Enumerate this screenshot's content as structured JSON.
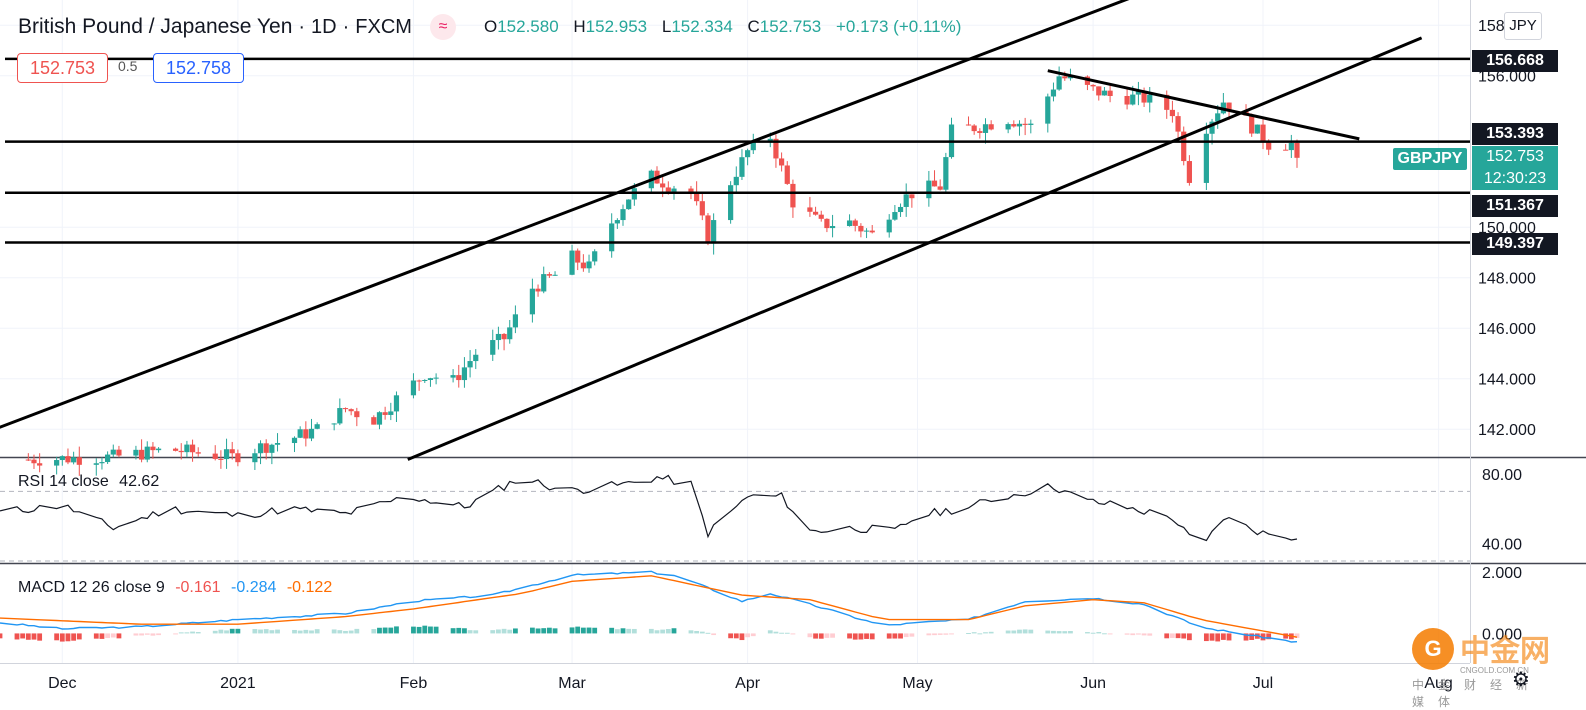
{
  "header": {
    "symbol_title": "British Pound / Japanese Yen",
    "interval": "1D",
    "exchange": "FXCM",
    "logo_glyph": "≈",
    "open_label": "O",
    "open": "152.580",
    "high_label": "H",
    "high": "152.953",
    "low_label": "L",
    "low": "152.334",
    "close_label": "C",
    "close": "152.753",
    "change": "+0.173 (+0.11%)"
  },
  "trade_boxes": {
    "sell": "152.753",
    "spread": "0.5",
    "buy": "152.758"
  },
  "currency": "JPY",
  "symbol_tag": "GBPJPY",
  "current_price": "152.753",
  "countdown": "12:30:23",
  "price_axis": {
    "ticks": [
      "142.000",
      "144.000",
      "146.000",
      "148.000",
      "150.000",
      "156.000"
    ],
    "top_tick": "158.000"
  },
  "price_labels": [
    "156.668",
    "153.393",
    "151.367",
    "149.397"
  ],
  "rsi": {
    "label": "RSI 14 close",
    "value": "42.62",
    "ticks": [
      "80.00",
      "40.00"
    ]
  },
  "macd": {
    "label": "MACD 12 26 close 9",
    "v1": "-0.161",
    "v2": "-0.284",
    "v3": "-0.122",
    "ticks": [
      "2.000",
      "0.000"
    ]
  },
  "time_axis": [
    "Dec",
    "2021",
    "Feb",
    "Mar",
    "Apr",
    "May",
    "Jun",
    "Jul",
    "Aug"
  ],
  "watermark": {
    "big": "中金网",
    "site": "CNGOLD.COM.CN",
    "small": "中金财经新媒体"
  },
  "colors": {
    "up": "#26a69a",
    "down": "#ef5350",
    "rsi_line": "#131722",
    "macd_line": "#2196f3",
    "signal_line": "#ff6d00",
    "hist_up_light": "#b2dfdb",
    "hist_down_light": "#ffcdd2"
  },
  "chart_data": {
    "type": "candlestick",
    "title": "British Pound / Japanese Yen · 1D · FXCM",
    "x_range": [
      "2020-11-20",
      "2021-07-07"
    ],
    "price_ylim": [
      140.9,
      159.0
    ],
    "horizontal_levels": [
      156.668,
      153.393,
      151.367,
      149.397
    ],
    "trendlines": [
      {
        "name": "upper-channel",
        "from": [
          "2020-11-12",
          141.4
        ],
        "to": [
          "2021-06-09",
          159.2
        ]
      },
      {
        "name": "lower-channel",
        "from": [
          "2021-01-31",
          140.8
        ],
        "to": [
          "2021-07-29",
          157.5
        ]
      },
      {
        "name": "descending-resistance",
        "from": [
          "2021-05-24",
          156.2
        ],
        "to": [
          "2021-07-18",
          153.5
        ]
      }
    ],
    "candle_anchors": [
      [
        "2020-11-25",
        140.8
      ],
      [
        "2020-12-10",
        140.9
      ],
      [
        "2020-12-20",
        141.2
      ],
      [
        "2020-12-31",
        140.9
      ],
      [
        "2021-01-05",
        141.3
      ],
      [
        "2021-01-10",
        141.6
      ],
      [
        "2021-01-15",
        142.0
      ],
      [
        "2021-01-20",
        142.8
      ],
      [
        "2021-01-25",
        142.4
      ],
      [
        "2021-01-29",
        143.2
      ],
      [
        "2021-02-03",
        144.2
      ],
      [
        "2021-02-08",
        143.9
      ],
      [
        "2021-02-12",
        145.0
      ],
      [
        "2021-02-17",
        145.6
      ],
      [
        "2021-02-22",
        147.6
      ],
      [
        "2021-02-26",
        148.1
      ],
      [
        "2021-03-01",
        148.8
      ],
      [
        "2021-03-04",
        148.4
      ],
      [
        "2021-03-08",
        150.2
      ],
      [
        "2021-03-11",
        151.2
      ],
      [
        "2021-03-15",
        152.0
      ],
      [
        "2021-03-18",
        151.7
      ],
      [
        "2021-03-22",
        151.4
      ],
      [
        "2021-03-25",
        149.6
      ],
      [
        "2021-03-29",
        151.8
      ],
      [
        "2021-04-01",
        153.0
      ],
      [
        "2021-04-05",
        153.6
      ],
      [
        "2021-04-09",
        151.0
      ],
      [
        "2021-04-14",
        150.1
      ],
      [
        "2021-04-19",
        150.2
      ],
      [
        "2021-04-23",
        149.7
      ],
      [
        "2021-04-27",
        150.9
      ],
      [
        "2021-05-01",
        151.5
      ],
      [
        "2021-05-05",
        151.6
      ],
      [
        "2021-05-07",
        153.8
      ],
      [
        "2021-05-12",
        154.0
      ],
      [
        "2021-05-17",
        154.3
      ],
      [
        "2021-05-21",
        154.0
      ],
      [
        "2021-05-26",
        156.0
      ],
      [
        "2021-05-31",
        155.5
      ],
      [
        "2021-06-04",
        155.2
      ],
      [
        "2021-06-10",
        155.1
      ],
      [
        "2021-06-15",
        154.6
      ],
      [
        "2021-06-18",
        152.0
      ],
      [
        "2021-06-21",
        154.0
      ],
      [
        "2021-06-24",
        155.0
      ],
      [
        "2021-06-29",
        154.0
      ],
      [
        "2021-07-02",
        153.3
      ],
      [
        "2021-07-06",
        153.3
      ],
      [
        "2021-07-07",
        152.75
      ]
    ],
    "rsi_ylim": [
      30,
      88
    ],
    "rsi_levels": [
      70,
      30
    ],
    "rsi_anchors": [
      [
        "2020-11-20",
        58
      ],
      [
        "2020-12-01",
        62
      ],
      [
        "2020-12-10",
        49
      ],
      [
        "2020-12-20",
        60
      ],
      [
        "2021-01-01",
        56
      ],
      [
        "2021-01-10",
        60
      ],
      [
        "2021-01-20",
        57
      ],
      [
        "2021-01-31",
        67
      ],
      [
        "2021-02-10",
        61
      ],
      [
        "2021-02-20",
        78
      ],
      [
        "2021-02-28",
        70
      ],
      [
        "2021-03-10",
        74
      ],
      [
        "2021-03-16",
        78
      ],
      [
        "2021-03-22",
        74
      ],
      [
        "2021-03-25",
        46
      ],
      [
        "2021-04-01",
        67
      ],
      [
        "2021-04-07",
        67
      ],
      [
        "2021-04-12",
        47
      ],
      [
        "2021-04-20",
        49
      ],
      [
        "2021-04-27",
        47
      ],
      [
        "2021-05-01",
        56
      ],
      [
        "2021-05-10",
        61
      ],
      [
        "2021-05-15",
        66
      ],
      [
        "2021-05-25",
        73
      ],
      [
        "2021-05-30",
        65
      ],
      [
        "2021-06-05",
        62
      ],
      [
        "2021-06-15",
        55
      ],
      [
        "2021-06-20",
        36
      ],
      [
        "2021-06-24",
        55
      ],
      [
        "2021-07-01",
        46
      ],
      [
        "2021-07-06",
        44
      ],
      [
        "2021-07-07",
        42.62
      ]
    ],
    "macd_ylim": [
      -0.9,
      2.2
    ],
    "macd_anchors": [
      [
        "2020-11-20",
        0.35
      ],
      [
        "2020-12-01",
        0.15
      ],
      [
        "2020-12-15",
        0.22
      ],
      [
        "2021-01-01",
        0.45
      ],
      [
        "2021-01-20",
        0.65
      ],
      [
        "2021-02-01",
        1.05
      ],
      [
        "2021-02-15",
        1.25
      ],
      [
        "2021-03-01",
        1.9
      ],
      [
        "2021-03-15",
        2.0
      ],
      [
        "2021-03-20",
        1.85
      ],
      [
        "2021-03-31",
        1.05
      ],
      [
        "2021-04-05",
        1.3
      ],
      [
        "2021-04-12",
        0.95
      ],
      [
        "2021-04-25",
        0.25
      ],
      [
        "2021-05-01",
        0.35
      ],
      [
        "2021-05-10",
        0.45
      ],
      [
        "2021-05-20",
        1.05
      ],
      [
        "2021-06-01",
        1.15
      ],
      [
        "2021-06-10",
        0.95
      ],
      [
        "2021-06-20",
        0.2
      ],
      [
        "2021-07-01",
        -0.12
      ],
      [
        "2021-07-07",
        -0.284
      ]
    ],
    "signal_anchors": [
      [
        "2020-11-20",
        0.5
      ],
      [
        "2020-12-15",
        0.3
      ],
      [
        "2021-01-01",
        0.3
      ],
      [
        "2021-01-20",
        0.55
      ],
      [
        "2021-02-01",
        0.8
      ],
      [
        "2021-02-20",
        1.3
      ],
      [
        "2021-03-01",
        1.7
      ],
      [
        "2021-03-15",
        1.88
      ],
      [
        "2021-03-31",
        1.25
      ],
      [
        "2021-04-12",
        1.1
      ],
      [
        "2021-04-25",
        0.45
      ],
      [
        "2021-05-10",
        0.45
      ],
      [
        "2021-05-20",
        0.9
      ],
      [
        "2021-06-01",
        1.1
      ],
      [
        "2021-06-10",
        1.0
      ],
      [
        "2021-06-20",
        0.45
      ],
      [
        "2021-07-07",
        -0.122
      ]
    ]
  }
}
